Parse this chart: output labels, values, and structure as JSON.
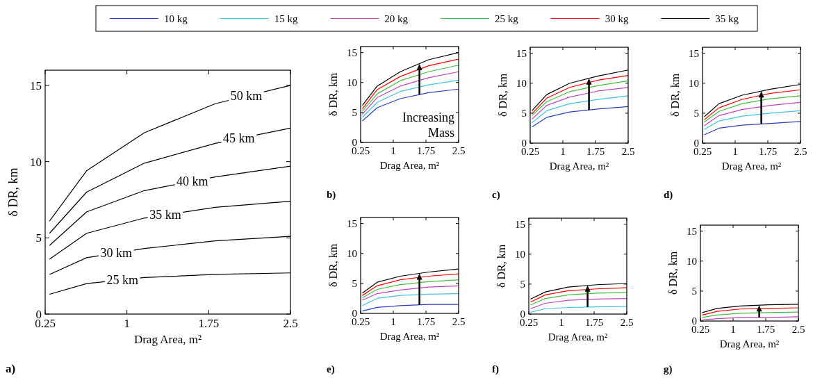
{
  "chart_data": [
    {
      "type": "line",
      "title": "a)",
      "xlabel": "Drag Area, m²",
      "ylabel": "δ DR, km",
      "x": [
        0.29,
        0.63,
        1.16,
        1.81,
        2.5
      ],
      "xlim": [
        0.25,
        2.5
      ],
      "ylim": [
        0,
        16
      ],
      "xticks": [
        0.25,
        1,
        1.75,
        2.5
      ],
      "yticks": [
        0,
        5,
        10,
        15
      ],
      "series": [
        {
          "color": "#000000",
          "values": [
            1.3,
            2.0,
            2.4,
            2.6,
            2.7
          ]
        },
        {
          "color": "#000000",
          "values": [
            2.6,
            3.7,
            4.3,
            4.8,
            5.1
          ]
        },
        {
          "color": "#000000",
          "values": [
            3.6,
            5.3,
            6.3,
            7.0,
            7.4
          ]
        },
        {
          "color": "#000000",
          "values": [
            4.5,
            6.7,
            8.1,
            9.0,
            9.7
          ]
        },
        {
          "color": "#000000",
          "values": [
            5.3,
            8.0,
            9.9,
            11.2,
            12.2
          ]
        },
        {
          "color": "#000000",
          "values": [
            6.1,
            9.4,
            11.9,
            13.8,
            15.0
          ]
        }
      ],
      "annotations": [
        "25 km",
        "30 km",
        "35 km",
        "40 km",
        "45 km",
        "50 km"
      ]
    },
    {
      "type": "line",
      "title": "b)",
      "xlabel": "Drag Area, m²",
      "ylabel": "δ DR, km",
      "x": [
        0.29,
        0.63,
        1.16,
        1.81,
        2.5
      ],
      "xlim": [
        0.25,
        2.5
      ],
      "ylim": [
        0,
        16
      ],
      "xticks": [
        0.25,
        1,
        1.75,
        2.5
      ],
      "yticks": [
        0,
        5,
        10,
        15
      ],
      "legend": "top",
      "series": [
        {
          "name": "10 kg",
          "color": "#2a3fbf",
          "values": [
            3.6,
            5.8,
            7.3,
            8.3,
            8.9
          ]
        },
        {
          "name": "15 kg",
          "color": "#3fc3e0",
          "values": [
            4.2,
            6.7,
            8.5,
            9.6,
            10.4
          ]
        },
        {
          "name": "20 kg",
          "color": "#c043c0",
          "values": [
            4.7,
            7.5,
            9.4,
            10.8,
            11.8
          ]
        },
        {
          "name": "25 kg",
          "color": "#3fbf3f",
          "values": [
            5.2,
            8.1,
            10.3,
            11.8,
            12.9
          ]
        },
        {
          "name": "30 kg",
          "color": "#ff0000",
          "values": [
            5.6,
            8.8,
            11.0,
            12.8,
            13.9
          ]
        },
        {
          "name": "35 kg",
          "color": "#000000",
          "values": [
            6.2,
            9.4,
            11.8,
            13.8,
            15.0
          ]
        }
      ],
      "annotations": [
        {
          "text": "Increasing Mass",
          "x": 1.6,
          "y": 13.1
        }
      ]
    },
    {
      "type": "line",
      "title": "c)",
      "xlabel": "Drag Area, m²",
      "ylabel": "δ DR, km",
      "x": [
        0.29,
        0.63,
        1.16,
        1.81,
        2.5
      ],
      "xlim": [
        0.25,
        2.5
      ],
      "ylim": [
        0,
        16
      ],
      "xticks": [
        0.25,
        1,
        1.75,
        2.5
      ],
      "yticks": [
        0,
        5,
        10,
        15
      ],
      "series": [
        {
          "color": "#2a3fbf",
          "values": [
            2.7,
            4.3,
            5.2,
            5.7,
            6.1
          ]
        },
        {
          "color": "#3fc3e0",
          "values": [
            3.4,
            5.4,
            6.6,
            7.3,
            7.9
          ]
        },
        {
          "color": "#c043c0",
          "values": [
            4.0,
            6.3,
            7.7,
            8.7,
            9.3
          ]
        },
        {
          "color": "#3fbf3f",
          "values": [
            4.6,
            6.9,
            8.6,
            9.6,
            10.4
          ]
        },
        {
          "color": "#ff0000",
          "values": [
            4.9,
            7.5,
            9.3,
            10.5,
            11.3
          ]
        },
        {
          "color": "#000000",
          "values": [
            5.4,
            8.1,
            10.0,
            11.2,
            12.2
          ]
        }
      ]
    },
    {
      "type": "line",
      "title": "d)",
      "xlabel": "Drag Area, m²",
      "ylabel": "δ DR, km",
      "x": [
        0.29,
        0.63,
        1.16,
        1.81,
        2.5
      ],
      "xlim": [
        0.25,
        2.5
      ],
      "ylim": [
        0,
        16
      ],
      "xticks": [
        0.25,
        1,
        1.75,
        2.5
      ],
      "yticks": [
        0,
        5,
        10,
        15
      ],
      "series": [
        {
          "color": "#2a3fbf",
          "values": [
            1.4,
            2.5,
            3.0,
            3.3,
            3.6
          ]
        },
        {
          "color": "#3fc3e0",
          "values": [
            2.3,
            3.7,
            4.5,
            5.0,
            5.4
          ]
        },
        {
          "color": "#c043c0",
          "values": [
            2.9,
            4.6,
            5.6,
            6.3,
            6.8
          ]
        },
        {
          "color": "#3fbf3f",
          "values": [
            3.5,
            5.3,
            6.6,
            7.4,
            7.9
          ]
        },
        {
          "color": "#ff0000",
          "values": [
            3.9,
            5.9,
            7.3,
            8.3,
            8.9
          ]
        },
        {
          "color": "#000000",
          "values": [
            4.4,
            6.6,
            8.0,
            9.0,
            9.8
          ]
        }
      ]
    },
    {
      "type": "line",
      "title": "e)",
      "xlabel": "Drag Area, m²",
      "ylabel": "δ DR, km",
      "x": [
        0.29,
        0.63,
        1.16,
        1.81,
        2.5
      ],
      "xlim": [
        0.25,
        2.5
      ],
      "ylim": [
        0,
        16
      ],
      "xticks": [
        0.25,
        1,
        1.75,
        2.5
      ],
      "yticks": [
        0,
        5,
        10,
        15
      ],
      "series": [
        {
          "color": "#2a3fbf",
          "values": [
            0.4,
            1.0,
            1.3,
            1.5,
            1.5
          ]
        },
        {
          "color": "#3fc3e0",
          "values": [
            1.3,
            2.5,
            3.0,
            3.2,
            3.3
          ]
        },
        {
          "color": "#c043c0",
          "values": [
            2.2,
            3.3,
            3.9,
            4.4,
            4.6
          ]
        },
        {
          "color": "#3fbf3f",
          "values": [
            2.6,
            4.0,
            4.8,
            5.3,
            5.6
          ]
        },
        {
          "color": "#ff0000",
          "values": [
            3.0,
            4.6,
            5.6,
            6.2,
            6.6
          ]
        },
        {
          "color": "#000000",
          "values": [
            3.4,
            5.2,
            6.2,
            6.9,
            7.4
          ]
        }
      ]
    },
    {
      "type": "line",
      "title": "f)",
      "xlabel": "Drag Area, m²",
      "ylabel": "δ DR, km",
      "x": [
        0.29,
        0.63,
        1.16,
        1.81,
        2.5
      ],
      "xlim": [
        0.25,
        2.5
      ],
      "ylim": [
        0,
        16
      ],
      "xticks": [
        0.25,
        1,
        1.75,
        2.5
      ],
      "yticks": [
        0,
        5,
        10,
        15
      ],
      "series": [
        {
          "color": "#2a3fbf",
          "values": [
            null,
            null,
            null,
            null,
            null
          ]
        },
        {
          "color": "#3fc3e0",
          "values": [
            0.3,
            0.9,
            1.1,
            1.2,
            1.3
          ]
        },
        {
          "color": "#c043c0",
          "values": [
            0.9,
            1.8,
            2.3,
            2.5,
            2.6
          ]
        },
        {
          "color": "#3fbf3f",
          "values": [
            1.5,
            2.6,
            3.2,
            3.5,
            3.6
          ]
        },
        {
          "color": "#ff0000",
          "values": [
            2.0,
            3.2,
            3.9,
            4.2,
            4.4
          ]
        },
        {
          "color": "#000000",
          "values": [
            2.5,
            3.7,
            4.5,
            4.9,
            5.1
          ]
        }
      ]
    },
    {
      "type": "line",
      "title": "g)",
      "xlabel": "Drag Area, m²",
      "ylabel": "δ DR, km",
      "x": [
        0.29,
        0.63,
        1.16,
        1.81,
        2.5
      ],
      "xlim": [
        0.25,
        2.5
      ],
      "ylim": [
        0,
        16
      ],
      "xticks": [
        0.25,
        1,
        1.75,
        2.5
      ],
      "yticks": [
        0,
        5,
        10,
        15
      ],
      "series": [
        {
          "color": "#2a3fbf",
          "values": [
            null,
            null,
            null,
            null,
            null
          ]
        },
        {
          "color": "#3fc3e0",
          "values": [
            null,
            null,
            null,
            null,
            null
          ]
        },
        {
          "color": "#c043c0",
          "values": [
            0.2,
            0.4,
            0.6,
            0.6,
            0.7
          ]
        },
        {
          "color": "#3fbf3f",
          "values": [
            0.6,
            1.0,
            1.3,
            1.4,
            1.5
          ]
        },
        {
          "color": "#ff0000",
          "values": [
            1.0,
            1.6,
            2.0,
            2.1,
            2.2
          ]
        },
        {
          "color": "#000000",
          "values": [
            1.4,
            2.1,
            2.5,
            2.7,
            2.8
          ]
        }
      ]
    }
  ]
}
